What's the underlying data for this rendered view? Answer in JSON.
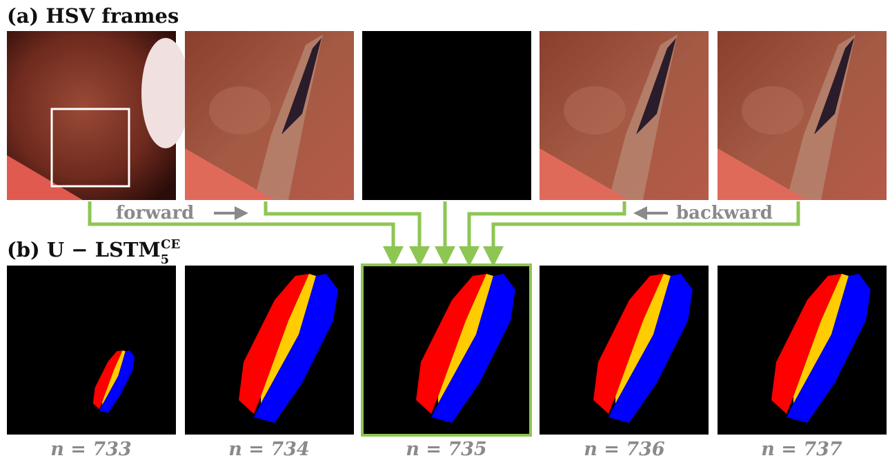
{
  "panel_a": {
    "title": "(a) HSV frames",
    "forward": "forward",
    "backward": "backward"
  },
  "panel_b": {
    "title": "(b) U − LSTM",
    "title_sub": "5",
    "title_sup": "CE"
  },
  "frame_labels": [
    "n = 733",
    "n = 734",
    "n = 735",
    "n = 736",
    "n = 737"
  ]
}
